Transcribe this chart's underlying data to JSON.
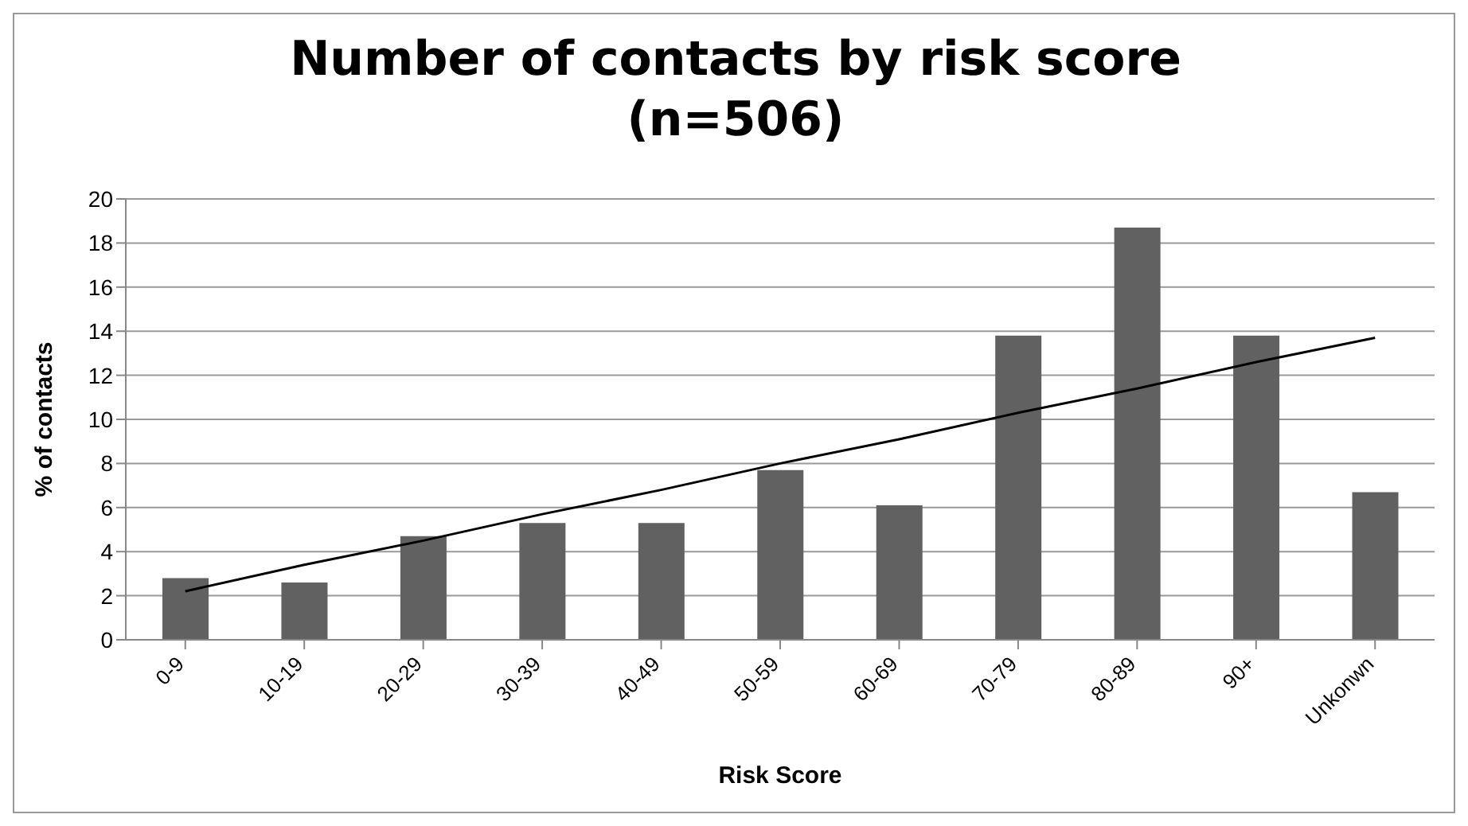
{
  "chart_data": {
    "type": "bar",
    "title": "Number of contacts by risk score\n(n=506)",
    "xlabel": "Risk Score",
    "ylabel": "% of contacts",
    "categories": [
      "0-9",
      "10-19",
      "20-29",
      "30-39",
      "40-49",
      "50-59",
      "60-69",
      "70-79",
      "80-89",
      "90+",
      "Unkonwn"
    ],
    "series": [
      {
        "color": "#616161",
        "values": [
          2.8,
          2.6,
          4.7,
          5.3,
          5.3,
          7.7,
          6.1,
          13.8,
          18.7,
          13.8,
          6.7
        ]
      },
      {
        "type": "line",
        "color": "#000000",
        "x": [
          "0-9",
          "10-19",
          "20-29",
          "30-39",
          "40-49",
          "50-59",
          "60-69",
          "70-79",
          "80-89",
          "90+",
          "Unkonwn"
        ],
        "values": [
          2.2,
          3.4,
          4.5,
          5.7,
          6.8,
          8.0,
          9.1,
          10.3,
          11.4,
          12.6,
          13.7
        ],
        "marker": "none"
      }
    ],
    "ylim": [
      0,
      20
    ],
    "yticks": [
      0,
      2,
      4,
      6,
      8,
      10,
      12,
      14,
      16,
      18,
      20
    ],
    "grid": "y"
  }
}
